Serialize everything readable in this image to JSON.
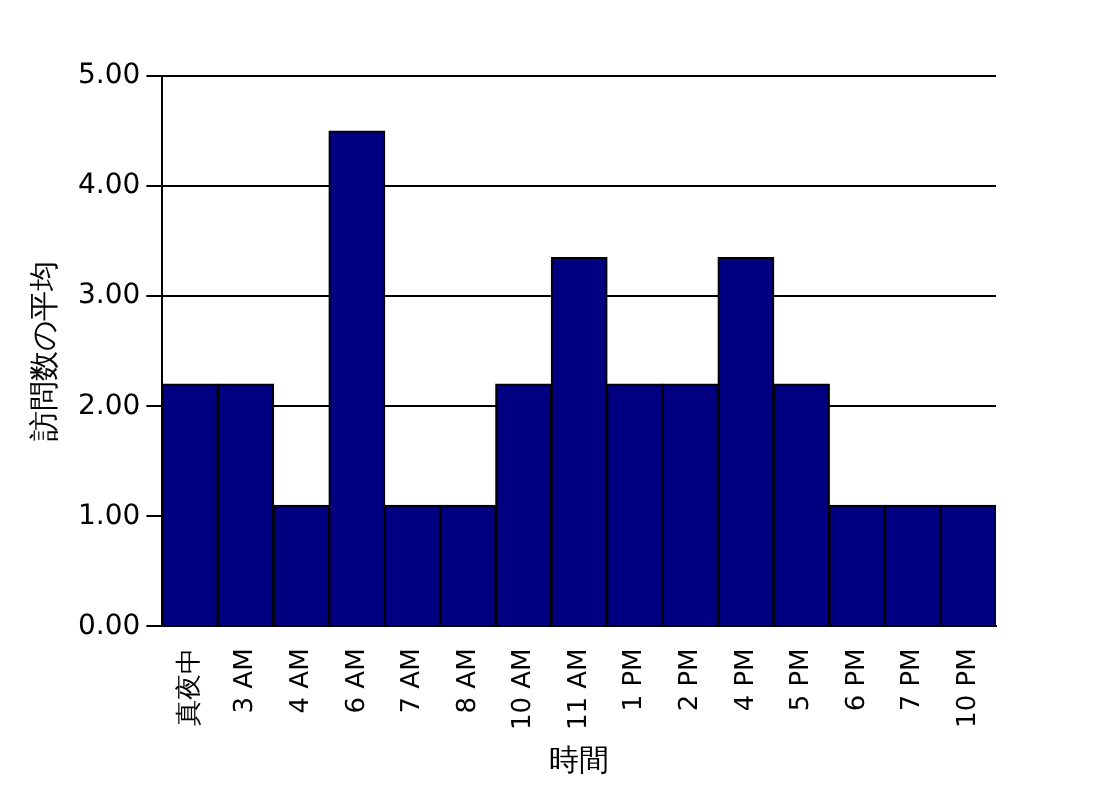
{
  "chart_data": {
    "type": "bar",
    "xlabel": "時間",
    "ylabel": "訪問数の平均",
    "categories": [
      "真夜中",
      "3 AM",
      "4 AM",
      "6 AM",
      "7 AM",
      "8 AM",
      "10 AM",
      "11 AM",
      "1 PM",
      "2 PM",
      "4 PM",
      "5 PM",
      "6 PM",
      "7 PM",
      "10 PM"
    ],
    "values": [
      2.2,
      2.2,
      1.1,
      4.5,
      1.1,
      1.1,
      2.2,
      3.35,
      2.2,
      2.2,
      3.35,
      2.2,
      1.1,
      1.1,
      1.1
    ],
    "color": "#000080",
    "ylim": [
      0,
      5
    ],
    "yticks": [
      {
        "value": 0,
        "label": "0.00"
      },
      {
        "value": 1,
        "label": "1.00"
      },
      {
        "value": 2,
        "label": "2.00"
      },
      {
        "value": 3,
        "label": "3.00"
      },
      {
        "value": 4,
        "label": "4.00"
      },
      {
        "value": 5,
        "label": "5.00"
      }
    ],
    "grid": "y",
    "legend": false
  }
}
